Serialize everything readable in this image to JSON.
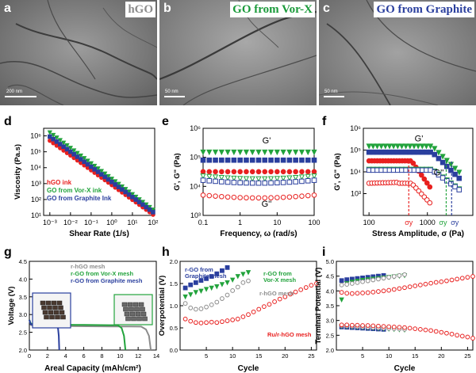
{
  "panels": {
    "a": {
      "label": "a",
      "title": "hGO",
      "title_color": "#8c8c8c",
      "scale": "200 nm"
    },
    "b": {
      "label": "b",
      "title": "GO from Vor-X",
      "title_color": "#1a9a3a",
      "scale": "50 nm"
    },
    "c": {
      "label": "c",
      "title": "GO from Graphite",
      "title_color": "#2a3f9e",
      "scale": "50 nm"
    }
  },
  "chart_data": [
    {
      "panel": "d",
      "type": "scatter",
      "xlabel": "Shear Rate (1/s)",
      "ylabel": "Viscosity (Pa.s)",
      "xscale": "log",
      "yscale": "log",
      "xlim": [
        0.0005,
        120
      ],
      "ylim": [
        10,
        3000000
      ],
      "xticks": [
        "10⁻³",
        "10⁻²",
        "10⁻¹",
        "10⁰",
        "10¹",
        "10²"
      ],
      "yticks": [
        "10¹",
        "10²",
        "10³",
        "10⁴",
        "10⁵",
        "10⁶"
      ],
      "legend": [
        "hGO ink",
        "GO from Vor-X ink",
        "GO from Graphite Ink"
      ],
      "series": [
        {
          "name": "hGO ink",
          "color": "#e8201f",
          "marker": "circle",
          "filled": true,
          "x0": 0.001,
          "y0": 500000,
          "slope": -0.93
        },
        {
          "name": "GO from Vor-X ink",
          "color": "#22a33c",
          "marker": "triangle",
          "filled": true,
          "x0": 0.001,
          "y0": 1600000,
          "slope": -0.97
        },
        {
          "name": "GO from Graphite Ink",
          "color": "#2a3f9e",
          "marker": "square",
          "filled": true,
          "x0": 0.001,
          "y0": 900000,
          "slope": -0.95
        }
      ]
    },
    {
      "panel": "e",
      "type": "scatter",
      "xlabel": "Frequency, ω (rad/s)",
      "ylabel": "G', G\" (Pa)",
      "xscale": "log",
      "yscale": "log",
      "xlim": [
        0.1,
        100
      ],
      "ylim": [
        1000,
        1000000
      ],
      "xticks": [
        "0.1",
        "1",
        "10",
        "100"
      ],
      "yticks": [
        "10³",
        "10⁴",
        "10⁵",
        "10⁶"
      ],
      "annotations": [
        "G'",
        "G''"
      ],
      "series": [
        {
          "name": "G' Vor-X",
          "color": "#22a33c",
          "marker": "triangle",
          "filled": true,
          "y": 150000
        },
        {
          "name": "G' Graphite",
          "color": "#2a3f9e",
          "marker": "square",
          "filled": true,
          "y": 80000
        },
        {
          "name": "G' hGO",
          "color": "#e8201f",
          "marker": "circle",
          "filled": true,
          "y": 32000
        },
        {
          "name": "G'' Vor-X",
          "color": "#22a33c",
          "marker": "triangle",
          "filled": false,
          "y": 18000
        },
        {
          "name": "G'' Graphite",
          "color": "#2a3f9e",
          "marker": "square",
          "filled": false,
          "y": 13000
        },
        {
          "name": "G'' hGO",
          "color": "#e8201f",
          "marker": "circle",
          "filled": false,
          "y": 4000
        }
      ]
    },
    {
      "panel": "f",
      "type": "scatter",
      "xlabel": "Stress Amplitude, σ (Pa)",
      "ylabel": "G', G\" (Pa)",
      "xscale": "log",
      "yscale": "log",
      "xlim": [
        80,
        6000
      ],
      "ylim": [
        100,
        1000000
      ],
      "xticks": [
        "100",
        "1000"
      ],
      "yticks": [
        "10³",
        "10⁴",
        "10⁵",
        "10⁶"
      ],
      "annotations": [
        "G'",
        "G''",
        "σy",
        "σy",
        "σy"
      ],
      "yield_stress": {
        "hGO": 480,
        "Vor-X": 2100,
        "Graphite": 2600
      },
      "series": [
        {
          "name": "G' Vor-X",
          "color": "#22a33c",
          "marker": "triangle",
          "filled": true,
          "plateau": 150000,
          "x_end": 3500
        },
        {
          "name": "G' Graphite",
          "color": "#2a3f9e",
          "marker": "square",
          "filled": true,
          "plateau": 80000,
          "x_end": 3500
        },
        {
          "name": "G' hGO",
          "color": "#e8201f",
          "marker": "circle",
          "filled": true,
          "plateau": 32000,
          "x_end": 1100
        },
        {
          "name": "G'' Vor-X",
          "color": "#22a33c",
          "marker": "triangle",
          "filled": false,
          "plateau": 13000,
          "x_end": 3500
        },
        {
          "name": "G'' Graphite",
          "color": "#2a3f9e",
          "marker": "square",
          "filled": false,
          "plateau": 12000,
          "x_end": 3500
        },
        {
          "name": "G'' hGO",
          "color": "#e8201f",
          "marker": "circle",
          "filled": false,
          "plateau": 3000,
          "x_end": 1100
        }
      ]
    },
    {
      "panel": "g",
      "type": "line",
      "xlabel": "Areal Capacity (mAh/cm²)",
      "ylabel": "Voltage (V)",
      "xlim": [
        0,
        14
      ],
      "ylim": [
        2.0,
        4.5
      ],
      "xticks": [
        "0",
        "2",
        "4",
        "6",
        "8",
        "10",
        "12",
        "14"
      ],
      "yticks": [
        "2.0",
        "2.5",
        "3.0",
        "3.5",
        "4.0",
        "4.5"
      ],
      "legend": [
        "r-hGO mesh",
        "r-GO from Vor-X mesh",
        "r-GO from Graphite mesh"
      ],
      "series": [
        {
          "name": "r-hGO mesh",
          "color": "#8c8c8c",
          "plateau": 2.68,
          "end": 13.4
        },
        {
          "name": "r-GO from Vor-X mesh",
          "color": "#22a33c",
          "plateau": 2.72,
          "end": 10.6
        },
        {
          "name": "r-GO from Graphite mesh",
          "color": "#2a3f9e",
          "plateau": 2.7,
          "end": 3.3
        }
      ]
    },
    {
      "panel": "h",
      "type": "scatter",
      "xlabel": "Cycle",
      "ylabel": "Overpotential (V)",
      "xlim": [
        0,
        26
      ],
      "ylim": [
        0,
        2.0
      ],
      "xticks": [
        "5",
        "10",
        "15",
        "20",
        "25"
      ],
      "yticks": [
        "0.0",
        "0.5",
        "1.0",
        "1.5",
        "2.0"
      ],
      "annotations": [
        "r-GO from Graphite mesh",
        "r-GO from Vor-X mesh",
        "r-hGO mesh",
        "Ru/r-hGO mesh"
      ],
      "series": [
        {
          "name": "r-GO from Graphite mesh",
          "color": "#2a3f9e",
          "marker": "square",
          "filled": true,
          "x": [
            1,
            2,
            3,
            4,
            5,
            6,
            7,
            8,
            9
          ],
          "y": [
            1.4,
            1.47,
            1.52,
            1.57,
            1.61,
            1.66,
            1.72,
            1.79,
            1.86
          ]
        },
        {
          "name": "r-GO from Vor-X mesh",
          "color": "#22a33c",
          "marker": "triangle",
          "filled": true,
          "x": [
            1,
            2,
            3,
            4,
            5,
            6,
            7,
            8,
            9,
            10,
            11,
            12,
            13
          ],
          "y": [
            1.2,
            1.25,
            1.3,
            1.33,
            1.37,
            1.4,
            1.43,
            1.48,
            1.52,
            1.58,
            1.66,
            1.71,
            1.75
          ]
        },
        {
          "name": "r-hGO mesh",
          "color": "#8c8c8c",
          "marker": "circle",
          "filled": false,
          "x": [
            1,
            2,
            3,
            4,
            5,
            6,
            7,
            8,
            9,
            10,
            11,
            12,
            13
          ],
          "y": [
            1.05,
            0.95,
            0.92,
            0.93,
            0.97,
            1.02,
            1.08,
            1.16,
            1.24,
            1.34,
            1.42,
            1.52,
            1.56
          ]
        },
        {
          "name": "Ru/r-hGO mesh",
          "color": "#e8201f",
          "marker": "circle",
          "filled": false,
          "x": [
            1,
            2,
            3,
            4,
            5,
            6,
            7,
            8,
            9,
            10,
            11,
            12,
            13,
            14,
            15,
            16,
            17,
            18,
            19,
            20,
            21,
            22,
            23,
            24,
            25,
            26
          ],
          "y": [
            0.7,
            0.65,
            0.62,
            0.61,
            0.62,
            0.63,
            0.62,
            0.64,
            0.66,
            0.68,
            0.7,
            0.75,
            0.8,
            0.86,
            0.92,
            0.98,
            1.03,
            1.09,
            1.15,
            1.2,
            1.26,
            1.31,
            1.36,
            1.41,
            1.46,
            1.5
          ]
        }
      ]
    },
    {
      "panel": "i",
      "type": "scatter",
      "xlabel": "Cycle",
      "ylabel": "Terminal Potential (V)",
      "xlim": [
        0,
        26
      ],
      "ylim": [
        2.0,
        5.0
      ],
      "xticks": [
        "5",
        "10",
        "15",
        "20",
        "25"
      ],
      "yticks": [
        "2.0",
        "2.5",
        "3.0",
        "3.5",
        "4.0",
        "4.5",
        "5.0"
      ],
      "series": [
        {
          "name": "r-GO from Graphite mesh (charge)",
          "color": "#2a3f9e",
          "marker": "square",
          "filled": true,
          "x": [
            1,
            2,
            3,
            4,
            5,
            6,
            7,
            8,
            9
          ],
          "y": [
            4.35,
            4.38,
            4.4,
            4.42,
            4.44,
            4.46,
            4.48,
            4.5,
            4.52
          ]
        },
        {
          "name": "r-GO from Vor-X mesh (charge)",
          "color": "#22a33c",
          "marker": "triangle",
          "filled": true,
          "x": [
            1,
            2,
            3,
            4,
            5,
            6,
            7,
            8,
            9,
            10,
            11,
            12,
            13
          ],
          "y": [
            3.7,
            4.25,
            4.3,
            4.33,
            4.36,
            4.38,
            4.4,
            4.42,
            4.44,
            4.46,
            4.48,
            4.5,
            4.52
          ]
        },
        {
          "name": "r-hGO mesh (charge)",
          "color": "#8c8c8c",
          "marker": "circle",
          "filled": false,
          "x": [
            1,
            2,
            3,
            4,
            5,
            6,
            7,
            8,
            9,
            10,
            11,
            12,
            13
          ],
          "y": [
            4.2,
            4.22,
            4.25,
            4.28,
            4.31,
            4.34,
            4.37,
            4.4,
            4.43,
            4.46,
            4.49,
            4.52,
            4.55
          ]
        },
        {
          "name": "Ru/r-hGO mesh (charge)",
          "color": "#e8201f",
          "marker": "circle",
          "filled": false,
          "x": [
            1,
            2,
            3,
            4,
            5,
            6,
            7,
            8,
            9,
            10,
            11,
            12,
            13,
            14,
            15,
            16,
            17,
            18,
            19,
            20,
            21,
            22,
            23,
            24,
            25,
            26
          ],
          "y": [
            3.95,
            3.92,
            3.91,
            3.92,
            3.93,
            3.94,
            3.96,
            3.98,
            4.0,
            4.02,
            4.05,
            4.08,
            4.11,
            4.14,
            4.17,
            4.2,
            4.23,
            4.26,
            4.29,
            4.31,
            4.34,
            4.37,
            4.4,
            4.43,
            4.46,
            4.49
          ]
        },
        {
          "name": "r-GO from Graphite mesh (discharge)",
          "color": "#2a3f9e",
          "marker": "square",
          "filled": true,
          "x": [
            1,
            2,
            3,
            4,
            5,
            6,
            7,
            8,
            9
          ],
          "y": [
            2.78,
            2.77,
            2.76,
            2.75,
            2.74,
            2.73,
            2.72,
            2.71,
            2.7
          ]
        },
        {
          "name": "r-GO from Vor-X mesh (discharge)",
          "color": "#22a33c",
          "marker": "triangle",
          "filled": true,
          "x": [
            1,
            2,
            3,
            4,
            5,
            6,
            7,
            8,
            9,
            10,
            11,
            12,
            13
          ],
          "y": [
            2.8,
            2.79,
            2.78,
            2.77,
            2.76,
            2.75,
            2.74,
            2.73,
            2.72,
            2.71,
            2.7,
            2.69,
            2.68
          ]
        },
        {
          "name": "r-hGO mesh (discharge)",
          "color": "#8c8c8c",
          "marker": "circle",
          "filled": false,
          "x": [
            1,
            2,
            3,
            4,
            5,
            6,
            7,
            8,
            9,
            10,
            11,
            12,
            13
          ],
          "y": [
            2.82,
            2.81,
            2.8,
            2.79,
            2.78,
            2.77,
            2.76,
            2.75,
            2.74,
            2.73,
            2.72,
            2.71,
            2.7
          ]
        },
        {
          "name": "Ru/r-hGO mesh (discharge)",
          "color": "#e8201f",
          "marker": "circle",
          "filled": false,
          "x": [
            1,
            2,
            3,
            4,
            5,
            6,
            7,
            8,
            9,
            10,
            11,
            12,
            13,
            14,
            15,
            16,
            17,
            18,
            19,
            20,
            21,
            22,
            23,
            24,
            25,
            26
          ],
          "y": [
            2.85,
            2.85,
            2.84,
            2.84,
            2.83,
            2.83,
            2.82,
            2.81,
            2.8,
            2.79,
            2.78,
            2.77,
            2.76,
            2.74,
            2.72,
            2.7,
            2.68,
            2.66,
            2.63,
            2.6,
            2.57,
            2.54,
            2.5,
            2.47,
            2.44,
            2.4
          ]
        }
      ]
    }
  ]
}
